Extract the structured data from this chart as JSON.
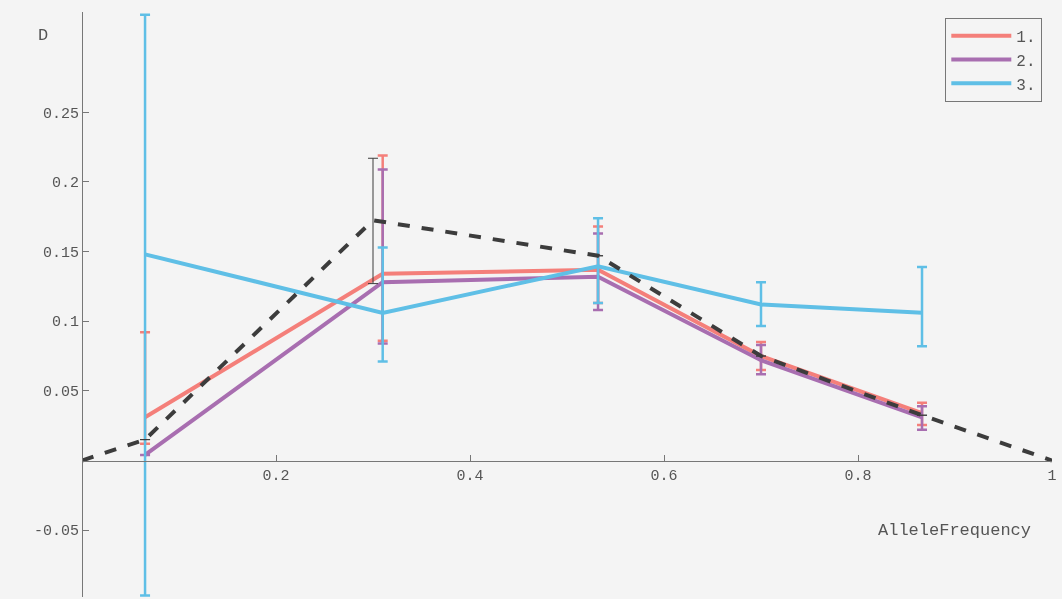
{
  "chart_data": {
    "type": "line",
    "xlabel": "AlleleFrequency",
    "ylabel": "D",
    "xlim": [
      0,
      1
    ],
    "ylim": [
      -0.098,
      0.322
    ],
    "xticks": [
      0.2,
      0.4,
      0.6,
      0.8,
      1
    ],
    "yticks": [
      -0.05,
      0.05,
      0.1,
      0.15,
      0.2,
      0.25
    ],
    "grid": false,
    "legend": "top right",
    "marker": "none",
    "line_style": "solid",
    "series": [
      {
        "name": "1.",
        "color": "#f47f7a",
        "x": [
          0.065,
          0.31,
          0.532,
          0.7,
          0.866
        ],
        "values": [
          0.031,
          0.134,
          0.137,
          0.075,
          0.034
        ],
        "errors": [
          [
            0.012,
            0.092
          ],
          [
            0.086,
            0.219
          ],
          [
            0.113,
            0.168
          ],
          [
            0.065,
            0.085
          ],
          [
            0.0255,
            0.0415
          ]
        ]
      },
      {
        "name": "2.",
        "color": "#a86eb0",
        "x": [
          0.065,
          0.31,
          0.532,
          0.7,
          0.866
        ],
        "values": [
          0.004,
          0.128,
          0.132,
          0.072,
          0.031
        ],
        "errors": [
          null,
          [
            0.084,
            0.209
          ],
          [
            0.108,
            0.163
          ],
          [
            0.062,
            0.083
          ],
          [
            0.022,
            0.039
          ]
        ]
      },
      {
        "name": "3.",
        "color": "#5fbfe6",
        "x": [
          0.065,
          0.31,
          0.532,
          0.7,
          0.866
        ],
        "values": [
          0.148,
          0.106,
          0.1395,
          0.112,
          0.106
        ],
        "errors": [
          [
            -0.097,
            0.32
          ],
          [
            0.071,
            0.153
          ],
          [
            0.113,
            0.174
          ],
          [
            0.0965,
            0.128
          ],
          [
            0.082,
            0.139
          ]
        ]
      },
      {
        "color": "#3c3c3c",
        "line_style": "dashed",
        "x": [
          0,
          0.065,
          0.3,
          0.532,
          0.7,
          0.866,
          1
        ],
        "values": [
          0,
          0.015,
          0.1725,
          0.147,
          0.075,
          0.0325,
          0
        ],
        "errors": [
          null,
          null,
          [
            0.127,
            0.217
          ],
          null,
          null,
          null,
          null
        ]
      }
    ]
  }
}
